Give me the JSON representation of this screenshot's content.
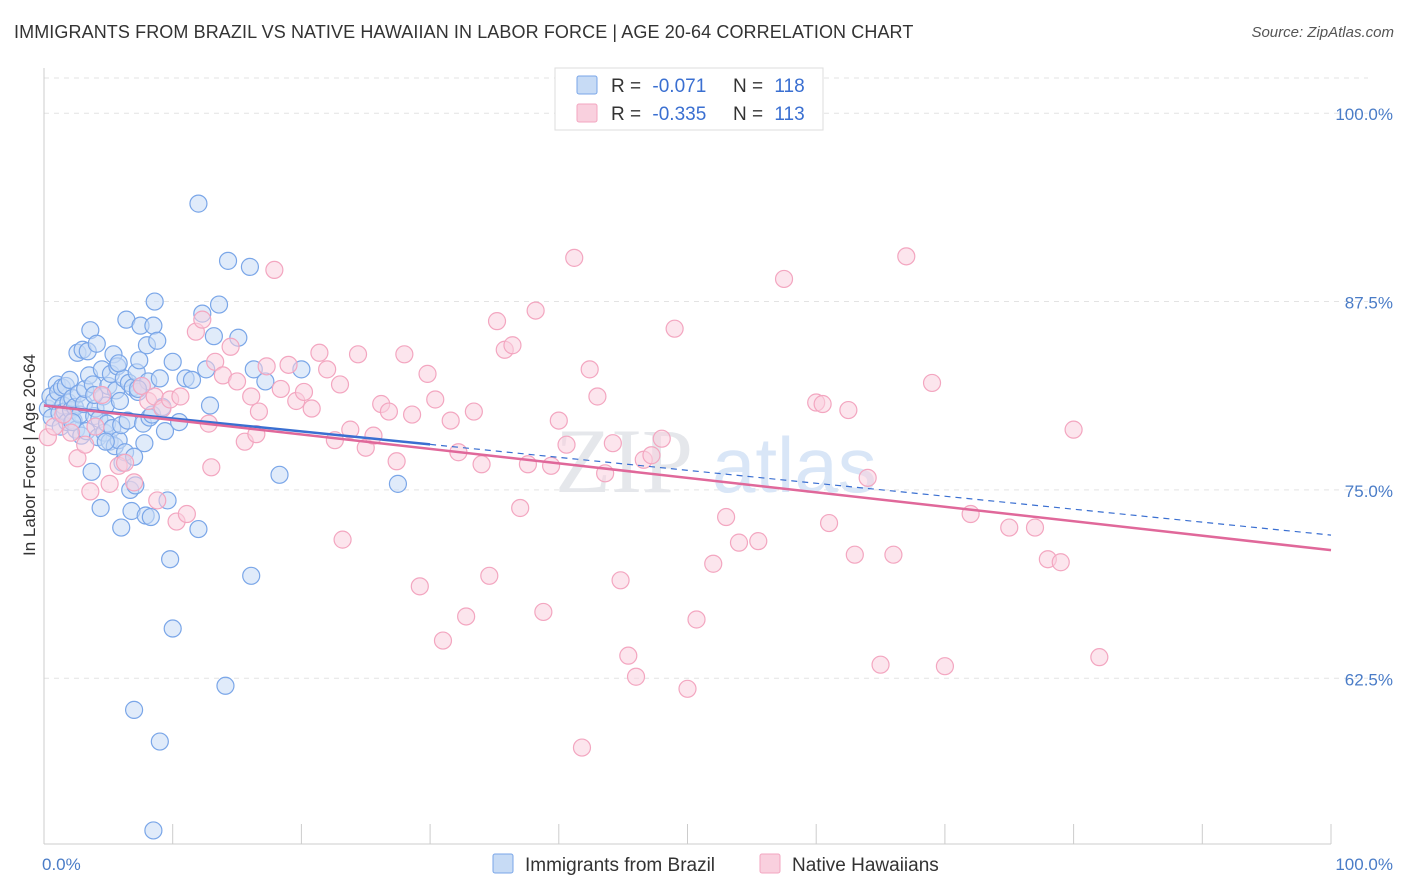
{
  "title": "IMMIGRANTS FROM BRAZIL VS NATIVE HAWAIIAN IN LABOR FORCE | AGE 20-64 CORRELATION CHART",
  "source": "Source: ZipAtlas.com",
  "watermark": {
    "zip": "ZIP",
    "atlas": "atlas"
  },
  "chart_data": {
    "type": "scatter",
    "xlabel": "",
    "ylabel": "In Labor Force | Age 20-64",
    "x_tick_labels": [
      "0.0%",
      "100.0%"
    ],
    "y_tick_labels": [
      "100.0%",
      "87.5%",
      "75.0%",
      "62.5%"
    ],
    "xlim": [
      0,
      100
    ],
    "ylim": [
      51.5,
      103
    ],
    "y_ticks": [
      100.0,
      87.5,
      75.0,
      62.5
    ],
    "grid": true,
    "legend_position": "top-center",
    "series": [
      {
        "name": "Immigrants from Brazil",
        "color": "#7aa6e8",
        "line_color": "#3a6fd1",
        "r_label": "R =",
        "r_value": "-0.071",
        "n_label": "N =",
        "n_value": "118",
        "trend": {
          "x0": 0,
          "y0": 80.6,
          "x1": 100,
          "y1": 72.0,
          "solid_until": 30
        },
        "points": [
          [
            0.3,
            80.4
          ],
          [
            0.5,
            81.2
          ],
          [
            0.6,
            79.8
          ],
          [
            0.8,
            80.9
          ],
          [
            1.0,
            82.0
          ],
          [
            1.1,
            81.5
          ],
          [
            1.2,
            80.1
          ],
          [
            1.3,
            79.2
          ],
          [
            1.4,
            81.8
          ],
          [
            1.5,
            80.6
          ],
          [
            1.6,
            80.2
          ],
          [
            1.7,
            81.9
          ],
          [
            1.8,
            79.5
          ],
          [
            1.9,
            80.8
          ],
          [
            2.0,
            82.3
          ],
          [
            2.1,
            80.3
          ],
          [
            2.2,
            81.1
          ],
          [
            2.3,
            79.6
          ],
          [
            2.4,
            80.5
          ],
          [
            2.5,
            79.0
          ],
          [
            2.6,
            84.1
          ],
          [
            2.7,
            81.4
          ],
          [
            2.8,
            80.0
          ],
          [
            2.9,
            78.6
          ],
          [
            3.0,
            84.3
          ],
          [
            3.1,
            80.7
          ],
          [
            3.2,
            81.7
          ],
          [
            3.3,
            78.9
          ],
          [
            3.4,
            84.2
          ],
          [
            3.5,
            82.6
          ],
          [
            3.6,
            85.6
          ],
          [
            3.7,
            76.2
          ],
          [
            3.8,
            82.0
          ],
          [
            3.9,
            79.9
          ],
          [
            4.0,
            80.4
          ],
          [
            4.1,
            84.7
          ],
          [
            4.2,
            78.5
          ],
          [
            4.3,
            79.7
          ],
          [
            4.4,
            73.8
          ],
          [
            4.5,
            83.0
          ],
          [
            4.6,
            81.2
          ],
          [
            4.7,
            78.8
          ],
          [
            4.8,
            80.6
          ],
          [
            4.9,
            79.4
          ],
          [
            5.0,
            81.9
          ],
          [
            5.1,
            78.2
          ],
          [
            5.2,
            82.7
          ],
          [
            5.3,
            79.1
          ],
          [
            5.4,
            84.0
          ],
          [
            5.5,
            77.9
          ],
          [
            5.6,
            81.6
          ],
          [
            5.7,
            83.2
          ],
          [
            5.8,
            78.3
          ],
          [
            5.9,
            80.9
          ],
          [
            6.0,
            79.3
          ],
          [
            6.1,
            76.8
          ],
          [
            6.2,
            82.4
          ],
          [
            6.3,
            77.5
          ],
          [
            6.4,
            86.3
          ],
          [
            6.5,
            79.6
          ],
          [
            6.6,
            82.1
          ],
          [
            6.7,
            75.0
          ],
          [
            6.8,
            73.6
          ],
          [
            6.9,
            81.8
          ],
          [
            7.0,
            77.2
          ],
          [
            7.1,
            75.3
          ],
          [
            7.2,
            82.8
          ],
          [
            7.3,
            81.5
          ],
          [
            7.4,
            83.6
          ],
          [
            7.5,
            85.9
          ],
          [
            7.6,
            81.9
          ],
          [
            7.7,
            79.4
          ],
          [
            7.8,
            78.1
          ],
          [
            7.9,
            73.3
          ],
          [
            8.0,
            84.6
          ],
          [
            8.1,
            82.2
          ],
          [
            8.2,
            79.8
          ],
          [
            8.3,
            73.2
          ],
          [
            8.4,
            80.0
          ],
          [
            8.5,
            85.9
          ],
          [
            8.6,
            87.5
          ],
          [
            8.8,
            84.9
          ],
          [
            9.0,
            82.4
          ],
          [
            9.2,
            80.5
          ],
          [
            9.4,
            78.9
          ],
          [
            9.6,
            74.3
          ],
          [
            9.8,
            70.4
          ],
          [
            10.0,
            83.5
          ],
          [
            10.5,
            79.5
          ],
          [
            11.0,
            82.4
          ],
          [
            11.5,
            82.3
          ],
          [
            12.0,
            72.4
          ],
          [
            12.3,
            86.7
          ],
          [
            12.6,
            83.0
          ],
          [
            12.9,
            80.6
          ],
          [
            13.2,
            85.2
          ],
          [
            13.6,
            87.3
          ],
          [
            14.3,
            90.2
          ],
          [
            15.1,
            85.1
          ],
          [
            16.0,
            89.8
          ],
          [
            16.3,
            83.0
          ],
          [
            17.2,
            82.2
          ],
          [
            18.3,
            76.0
          ],
          [
            20.0,
            83.0
          ],
          [
            27.5,
            75.4
          ],
          [
            2.2,
            79.5
          ],
          [
            3.9,
            81.3
          ],
          [
            5.8,
            83.4
          ],
          [
            7.3,
            81.7
          ],
          [
            9.0,
            58.3
          ],
          [
            8.5,
            52.4
          ],
          [
            7.0,
            60.4
          ],
          [
            10.0,
            65.8
          ],
          [
            14.1,
            62.0
          ],
          [
            16.1,
            69.3
          ],
          [
            12.0,
            94.0
          ],
          [
            6.0,
            72.5
          ],
          [
            4.8,
            78.2
          ]
        ]
      },
      {
        "name": "Native Hawaiians",
        "color": "#f3a6c0",
        "line_color": "#e0689a",
        "r_label": "R =",
        "r_value": "-0.335",
        "n_label": "N =",
        "n_value": "113",
        "trend": {
          "x0": 0,
          "y0": 80.6,
          "x1": 100,
          "y1": 71.0
        },
        "points": [
          [
            0.3,
            78.5
          ],
          [
            0.8,
            79.2
          ],
          [
            1.5,
            80.0
          ],
          [
            2.1,
            78.8
          ],
          [
            2.6,
            77.1
          ],
          [
            3.2,
            78.0
          ],
          [
            3.6,
            74.9
          ],
          [
            4.0,
            79.2
          ],
          [
            4.5,
            81.3
          ],
          [
            5.1,
            75.4
          ],
          [
            5.8,
            76.6
          ],
          [
            6.3,
            76.8
          ],
          [
            7.0,
            75.5
          ],
          [
            7.6,
            81.9
          ],
          [
            8.1,
            80.9
          ],
          [
            8.6,
            81.2
          ],
          [
            9.2,
            80.4
          ],
          [
            9.8,
            81.0
          ],
          [
            10.3,
            72.9
          ],
          [
            10.6,
            81.2
          ],
          [
            11.1,
            73.4
          ],
          [
            11.8,
            85.5
          ],
          [
            12.3,
            86.3
          ],
          [
            12.8,
            79.4
          ],
          [
            13.3,
            83.5
          ],
          [
            13.9,
            82.6
          ],
          [
            14.5,
            84.5
          ],
          [
            15.0,
            82.2
          ],
          [
            15.6,
            78.2
          ],
          [
            16.1,
            81.2
          ],
          [
            16.7,
            80.2
          ],
          [
            17.3,
            83.2
          ],
          [
            17.9,
            89.6
          ],
          [
            18.4,
            81.7
          ],
          [
            19.0,
            83.3
          ],
          [
            19.6,
            80.9
          ],
          [
            20.2,
            81.5
          ],
          [
            20.8,
            80.4
          ],
          [
            21.4,
            84.1
          ],
          [
            22.0,
            83.0
          ],
          [
            22.6,
            78.3
          ],
          [
            23.2,
            71.7
          ],
          [
            23.8,
            79.0
          ],
          [
            24.4,
            84.0
          ],
          [
            25.0,
            77.8
          ],
          [
            25.6,
            78.6
          ],
          [
            26.2,
            80.7
          ],
          [
            26.8,
            80.2
          ],
          [
            27.4,
            76.9
          ],
          [
            28.0,
            84.0
          ],
          [
            28.6,
            80.0
          ],
          [
            29.2,
            68.6
          ],
          [
            29.8,
            82.7
          ],
          [
            30.4,
            81.0
          ],
          [
            31.0,
            65.0
          ],
          [
            31.6,
            79.6
          ],
          [
            32.2,
            77.5
          ],
          [
            32.8,
            66.6
          ],
          [
            33.4,
            80.2
          ],
          [
            34.0,
            76.7
          ],
          [
            34.6,
            69.3
          ],
          [
            35.2,
            86.2
          ],
          [
            35.8,
            84.3
          ],
          [
            36.4,
            84.6
          ],
          [
            37.0,
            73.8
          ],
          [
            37.6,
            76.7
          ],
          [
            38.2,
            86.9
          ],
          [
            38.8,
            66.9
          ],
          [
            39.4,
            76.6
          ],
          [
            40.0,
            79.6
          ],
          [
            40.6,
            78.0
          ],
          [
            41.2,
            90.4
          ],
          [
            41.8,
            57.9
          ],
          [
            42.4,
            83.0
          ],
          [
            43.0,
            81.2
          ],
          [
            43.6,
            76.1
          ],
          [
            44.2,
            78.1
          ],
          [
            44.8,
            69.0
          ],
          [
            45.4,
            64.0
          ],
          [
            46.0,
            62.6
          ],
          [
            46.6,
            77.0
          ],
          [
            47.2,
            77.3
          ],
          [
            48.0,
            78.4
          ],
          [
            49.0,
            85.7
          ],
          [
            50.0,
            61.8
          ],
          [
            50.7,
            66.4
          ],
          [
            52.0,
            70.1
          ],
          [
            53.0,
            73.2
          ],
          [
            54.0,
            71.5
          ],
          [
            55.5,
            71.6
          ],
          [
            57.5,
            89.0
          ],
          [
            60.0,
            80.8
          ],
          [
            60.5,
            80.7
          ],
          [
            61.0,
            72.8
          ],
          [
            62.5,
            80.3
          ],
          [
            63.0,
            70.7
          ],
          [
            64.0,
            75.8
          ],
          [
            65.0,
            63.4
          ],
          [
            66.0,
            70.7
          ],
          [
            67.0,
            90.5
          ],
          [
            69.0,
            82.1
          ],
          [
            70.0,
            63.3
          ],
          [
            72.0,
            73.4
          ],
          [
            75.0,
            72.5
          ],
          [
            77.0,
            72.5
          ],
          [
            78.0,
            70.4
          ],
          [
            79.0,
            70.2
          ],
          [
            80.0,
            79.0
          ],
          [
            82.0,
            63.9
          ],
          [
            13.0,
            76.5
          ],
          [
            8.8,
            74.3
          ],
          [
            16.5,
            78.7
          ],
          [
            23.0,
            82.0
          ]
        ]
      }
    ]
  }
}
